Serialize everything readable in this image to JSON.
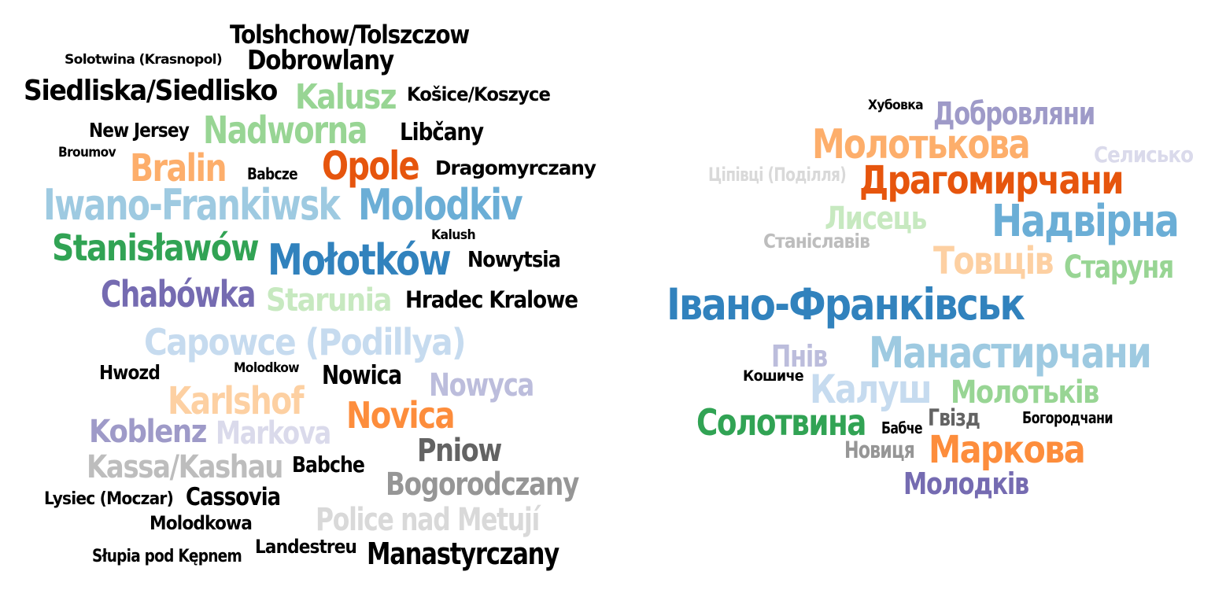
{
  "colors": {
    "black": "#000000",
    "green_light": "#98d594",
    "green": "#31a354",
    "orange_light": "#fdae6b",
    "orange": "#fd8d3c",
    "red_orange": "#e6550d",
    "blue_light": "#9ecae1",
    "blue": "#6baed6",
    "blue_dark": "#3182bd",
    "blue_pale": "#c6dbef",
    "purple": "#756bb1",
    "purple_mid": "#9e9ac8",
    "purple_light": "#bcbddc",
    "purple_pale": "#dadaeb",
    "green_pale": "#c7e9c0",
    "orange_pale": "#fdd0a2",
    "gray_dark": "#636363",
    "gray": "#969696",
    "gray_light": "#bdbdbd",
    "gray_pale": "#d9d9d9"
  },
  "clouds": {
    "left": {
      "words": [
        {
          "text": "Tolshchow/Tolszczow",
          "color": "black"
        },
        {
          "text": "Solotwina (Krasnopol)",
          "color": "black"
        },
        {
          "text": "Dobrowlany",
          "color": "black"
        },
        {
          "text": "Siedliska/Siedlisko",
          "color": "black"
        },
        {
          "text": "Kalusz",
          "color": "green_light"
        },
        {
          "text": "Košice/Koszyce",
          "color": "black"
        },
        {
          "text": "New Jersey",
          "color": "black"
        },
        {
          "text": "Nadworna",
          "color": "green_light"
        },
        {
          "text": "Libčany",
          "color": "black"
        },
        {
          "text": "Broumov",
          "color": "black"
        },
        {
          "text": "Bralin",
          "color": "orange_light"
        },
        {
          "text": "Babcze",
          "color": "black"
        },
        {
          "text": "Opole",
          "color": "red_orange"
        },
        {
          "text": "Dragomyrczany",
          "color": "black"
        },
        {
          "text": "Iwano-Frankiwsk",
          "color": "blue_light"
        },
        {
          "text": "Molodkiv",
          "color": "blue"
        },
        {
          "text": "Stanisławów",
          "color": "green"
        },
        {
          "text": "Kalush",
          "color": "black"
        },
        {
          "text": "Mołotków",
          "color": "blue_dark"
        },
        {
          "text": "Nowytsia",
          "color": "black"
        },
        {
          "text": "Chabówka",
          "color": "purple"
        },
        {
          "text": "Starunia",
          "color": "green_pale"
        },
        {
          "text": "Hradec Kralowe",
          "color": "black"
        },
        {
          "text": "Capowce (Podillya)",
          "color": "blue_pale"
        },
        {
          "text": "Hwozd",
          "color": "black"
        },
        {
          "text": "Molodkow",
          "color": "black"
        },
        {
          "text": "Nowica",
          "color": "black"
        },
        {
          "text": "Nowyca",
          "color": "purple_light"
        },
        {
          "text": "Karlshof",
          "color": "orange_pale"
        },
        {
          "text": "Novica",
          "color": "orange"
        },
        {
          "text": "Koblenz",
          "color": "purple_mid"
        },
        {
          "text": "Markova",
          "color": "purple_pale"
        },
        {
          "text": "Pniow",
          "color": "gray_dark"
        },
        {
          "text": "Kassa/Kashau",
          "color": "gray_light"
        },
        {
          "text": "Babche",
          "color": "black"
        },
        {
          "text": "Bogorodczany",
          "color": "gray"
        },
        {
          "text": "Lysiec (Moczar)",
          "color": "black"
        },
        {
          "text": "Cassovia",
          "color": "black"
        },
        {
          "text": "Molodkowa",
          "color": "black"
        },
        {
          "text": "Police nad Metují",
          "color": "gray_pale"
        },
        {
          "text": "Landestreu",
          "color": "black"
        },
        {
          "text": "Słupia pod Kępnem",
          "color": "black"
        },
        {
          "text": "Manastyrczany",
          "color": "black"
        }
      ]
    },
    "right": {
      "words": [
        {
          "text": "Хубовка",
          "color": "black"
        },
        {
          "text": "Добровляни",
          "color": "purple_mid"
        },
        {
          "text": "Молотькова",
          "color": "orange_light"
        },
        {
          "text": "Селисько",
          "color": "purple_pale"
        },
        {
          "text": "Цiпiвцi (Подiлля)",
          "color": "gray_pale"
        },
        {
          "text": "Драгомирчани",
          "color": "red_orange"
        },
        {
          "text": "Лисець",
          "color": "green_pale"
        },
        {
          "text": "Надвірна",
          "color": "blue"
        },
        {
          "text": "Станіславів",
          "color": "gray_light"
        },
        {
          "text": "Товщів",
          "color": "orange_pale"
        },
        {
          "text": "Старуня",
          "color": "green_light"
        },
        {
          "text": "Івано-Франківськ",
          "color": "blue_dark"
        },
        {
          "text": "Пнів",
          "color": "purple_light"
        },
        {
          "text": "Манастирчани",
          "color": "blue_light"
        },
        {
          "text": "Кошиче",
          "color": "black"
        },
        {
          "text": "Калуш",
          "color": "blue_pale"
        },
        {
          "text": "Молотьків",
          "color": "green_light"
        },
        {
          "text": "Солотвина",
          "color": "green"
        },
        {
          "text": "Бабче",
          "color": "black"
        },
        {
          "text": "Гвізд",
          "color": "gray_dark"
        },
        {
          "text": "Богородчани",
          "color": "black"
        },
        {
          "text": "Новиця",
          "color": "gray"
        },
        {
          "text": "Маркова",
          "color": "orange"
        },
        {
          "text": "Молодків",
          "color": "purple"
        }
      ]
    }
  }
}
